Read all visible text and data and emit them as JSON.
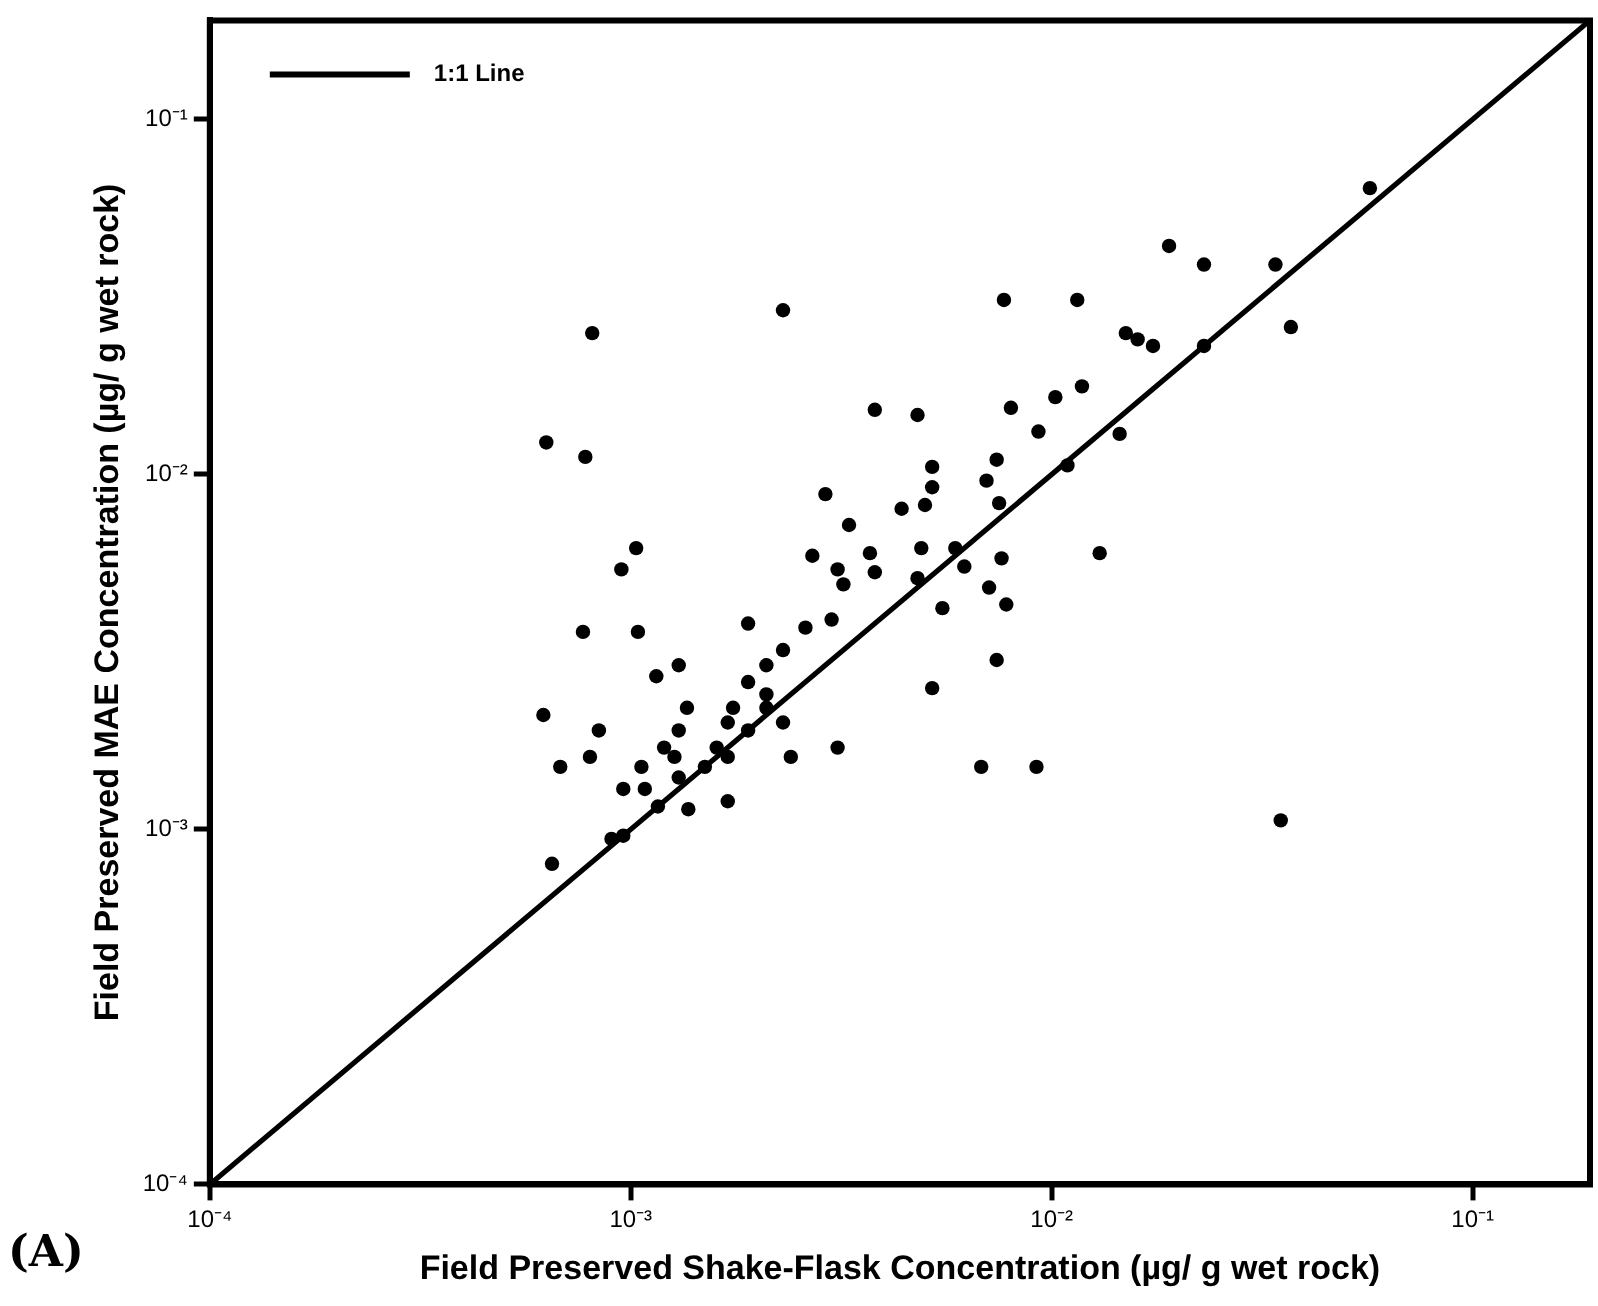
{
  "chart_data": {
    "type": "scatter",
    "xlabel": "Field Preserved Shake-Flask Concentration (µg/ g wet rock)",
    "ylabel": "Field Preserved MAE Concentration (µg/ g wet rock)",
    "log": "xy",
    "xlim": [
      0.0001,
      0.19
    ],
    "ylim": [
      0.0001,
      0.19
    ],
    "xticks": [
      {
        "value": 0.0001,
        "label": "10⁻⁴"
      },
      {
        "value": 0.001,
        "label": "10⁻³"
      },
      {
        "value": 0.01,
        "label": "10⁻²"
      },
      {
        "value": 0.1,
        "label": "10⁻¹"
      }
    ],
    "yticks": [
      {
        "value": 0.0001,
        "label": "10⁻⁴"
      },
      {
        "value": 0.001,
        "label": "10⁻³"
      },
      {
        "value": 0.01,
        "label": "10⁻²"
      },
      {
        "value": 0.1,
        "label": "10⁻¹"
      }
    ],
    "grid": false,
    "legend": "top left",
    "annotations": [
      "(A)"
    ],
    "series": [
      {
        "marker": "circle",
        "color": "#000000",
        "x": [
          0.00081,
          0.0023,
          0.0077,
          0.0115,
          0.0118,
          0.0102,
          0.008,
          0.0038,
          0.0048,
          0.0093,
          0.00063,
          0.00078,
          0.0052,
          0.0074,
          0.007,
          0.0109,
          0.0052,
          0.0029,
          0.0044,
          0.005,
          0.0075,
          0.0033,
          0.00103,
          0.00095,
          0.0027,
          0.0037,
          0.0049,
          0.0059,
          0.0031,
          0.0038,
          0.0062,
          0.0076,
          0.0032,
          0.0048,
          0.0071,
          0.0055,
          0.0078,
          0.00077,
          0.00104,
          0.0019,
          0.0026,
          0.003,
          0.0023,
          0.0021,
          0.0013,
          0.00115,
          0.0019,
          0.0074,
          0.0052,
          0.0021,
          0.00062,
          0.00136,
          0.00175,
          0.0021,
          0.00084,
          0.0013,
          0.0017,
          0.0023,
          0.0019,
          0.0008,
          0.0012,
          0.00127,
          0.0016,
          0.0017,
          0.0024,
          0.0031,
          0.0015,
          0.00068,
          0.00106,
          0.0013,
          0.0068,
          0.0092,
          0.00096,
          0.00108,
          0.00116,
          0.00137,
          0.0017,
          0.0009,
          0.00096,
          0.00065,
          0.057,
          0.019,
          0.023,
          0.034,
          0.015,
          0.016,
          0.0174,
          0.023,
          0.037,
          0.0145,
          0.013,
          0.035
        ],
        "values": [
          0.025,
          0.029,
          0.031,
          0.031,
          0.0177,
          0.0165,
          0.0154,
          0.0152,
          0.0147,
          0.0132,
          0.0123,
          0.0112,
          0.0105,
          0.011,
          0.0096,
          0.0106,
          0.0092,
          0.0088,
          0.008,
          0.0082,
          0.0083,
          0.0072,
          0.0062,
          0.0054,
          0.0059,
          0.006,
          0.0062,
          0.0062,
          0.0054,
          0.0053,
          0.0055,
          0.0058,
          0.0049,
          0.0051,
          0.0048,
          0.0042,
          0.0043,
          0.0036,
          0.0036,
          0.0038,
          0.0037,
          0.0039,
          0.0032,
          0.0029,
          0.0029,
          0.0027,
          0.0026,
          0.003,
          0.0025,
          0.0024,
          0.0021,
          0.0022,
          0.0022,
          0.0022,
          0.0019,
          0.0019,
          0.002,
          0.002,
          0.0019,
          0.0016,
          0.0017,
          0.0016,
          0.0017,
          0.0016,
          0.0016,
          0.0017,
          0.0015,
          0.0015,
          0.0015,
          0.0014,
          0.0015,
          0.0015,
          0.0013,
          0.0013,
          0.00116,
          0.00114,
          0.0012,
          0.00094,
          0.00096,
          0.0008,
          0.064,
          0.044,
          0.039,
          0.039,
          0.025,
          0.024,
          0.023,
          0.023,
          0.026,
          0.013,
          0.006,
          0.00106
        ]
      },
      {
        "type": "line",
        "name": "1:1 Line",
        "color": "#000000",
        "x": [
          0.0001,
          0.19
        ],
        "values": [
          0.0001,
          0.19
        ]
      }
    ]
  }
}
